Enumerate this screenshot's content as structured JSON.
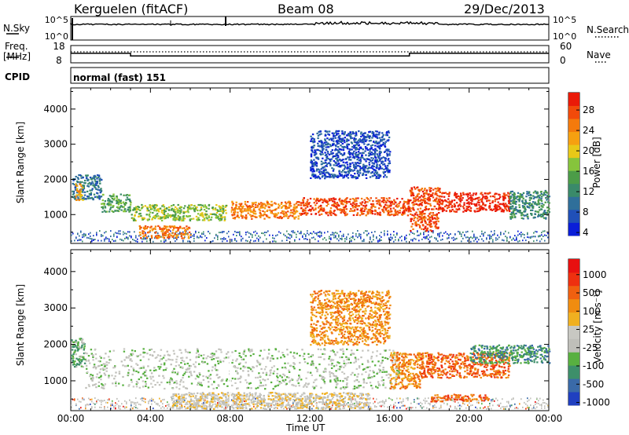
{
  "header": {
    "site": "Kerguelen (fitACF)",
    "beam": "Beam 08",
    "date": "29/Dec/2013"
  },
  "labels": {
    "nsky": "N.Sky",
    "nsearch": "N.Search",
    "freq": "Freq.",
    "freq_unit": "[MHz]",
    "nave": "Nave",
    "cpid": "CPID",
    "cpid_value": "normal (fast) 151"
  },
  "colors": {
    "power": [
      "#0a1ed8",
      "#2050b8",
      "#2f6f9a",
      "#3a8a6a",
      "#4c9c48",
      "#86c43c",
      "#e8c818",
      "#f6a010",
      "#f47a0c",
      "#f24a0a",
      "#ea1a08"
    ],
    "velocity": [
      "#2040c0",
      "#3a6aa8",
      "#3d8f6a",
      "#58b040",
      "#bfbfb9",
      "#c8c8c2",
      "#f0b020",
      "#f08c10",
      "#f06010",
      "#ee3010",
      "#e81010"
    ],
    "gray_scatter": "#bfbfb9"
  },
  "chart_data": [
    {
      "type": "line",
      "name": "sky-search-noise",
      "ylabel": "N.Sky",
      "y_ticks": [
        "10^5",
        "10^0"
      ],
      "y2_ticks": [
        "10^5",
        "10^0"
      ],
      "y2_label": "N.Search"
    },
    {
      "type": "line",
      "name": "frequency-nave",
      "ylabel": "Freq. [MHz]",
      "y_ticks": [
        "18",
        "8"
      ],
      "y2_ticks": [
        "60",
        "0"
      ],
      "y2_label": "Nave",
      "xlim": [
        0,
        24
      ],
      "ylim": [
        8,
        18
      ],
      "series": [
        {
          "x": [
            0,
            3,
            3,
            17,
            17,
            24
          ],
          "values": [
            13.5,
            13.5,
            12,
            12,
            13.5,
            13.5
          ]
        }
      ]
    },
    {
      "type": "heatmap",
      "name": "power",
      "ylabel": "Slant Range [km]",
      "y_ticks": [
        "4000",
        "3000",
        "2000",
        "1000"
      ],
      "ylim": [
        180,
        4600
      ],
      "xlim": [
        0,
        24
      ],
      "colorbar": {
        "label": "Power [dB]",
        "ticks": [
          "28",
          "24",
          "20",
          "16",
          "12",
          "8",
          "4"
        ]
      },
      "regions": [
        {
          "t0": 0.0,
          "t1": 1.5,
          "r0": 1450,
          "r1": 2150,
          "c": 2
        },
        {
          "t0": 0.2,
          "t1": 0.6,
          "r0": 1400,
          "r1": 1900,
          "c": 7
        },
        {
          "t0": 1.5,
          "t1": 3.0,
          "r0": 1100,
          "r1": 1600,
          "c": 4
        },
        {
          "t0": 3.0,
          "t1": 7.8,
          "r0": 850,
          "r1": 1300,
          "c": 5
        },
        {
          "t0": 3.4,
          "t1": 6.0,
          "r0": 350,
          "r1": 700,
          "c": 8
        },
        {
          "t0": 8.0,
          "t1": 11.5,
          "r0": 900,
          "r1": 1400,
          "c": 8
        },
        {
          "t0": 11.5,
          "t1": 17.0,
          "r0": 1000,
          "r1": 1500,
          "c": 9
        },
        {
          "t0": 12.0,
          "t1": 16.0,
          "r0": 2050,
          "r1": 3400,
          "c": 1
        },
        {
          "t0": 17.0,
          "t1": 18.5,
          "r0": 550,
          "r1": 1800,
          "c": 9
        },
        {
          "t0": 18.5,
          "t1": 22.0,
          "r0": 1100,
          "r1": 1650,
          "c": 10
        },
        {
          "t0": 22.0,
          "t1": 24.0,
          "r0": 900,
          "r1": 1700,
          "c": 3
        }
      ]
    },
    {
      "type": "heatmap",
      "name": "velocity",
      "ylabel": "Slant Range [km]",
      "y_ticks": [
        "4000",
        "3000",
        "2000",
        "1000"
      ],
      "ylim": [
        180,
        4600
      ],
      "xlim": [
        0,
        24
      ],
      "x_ticks": [
        "00:00",
        "04:00",
        "08:00",
        "12:00",
        "16:00",
        "20:00",
        "00:00"
      ],
      "xlabel": "Time UT",
      "colorbar": {
        "label": "Velocity [m s⁻¹]",
        "ticks": [
          "1000",
          "500",
          "100",
          "25",
          "-25",
          "-100",
          "-500",
          "-1000"
        ]
      },
      "regions": [
        {
          "t0": 0.0,
          "t1": 0.7,
          "r0": 1400,
          "r1": 2200,
          "c": 3
        },
        {
          "t0": 0.7,
          "t1": 16.5,
          "r0": 800,
          "r1": 1900,
          "c": 4
        },
        {
          "t0": 12.0,
          "t1": 16.0,
          "r0": 2000,
          "r1": 3500,
          "c": 7
        },
        {
          "t0": 16.0,
          "t1": 17.5,
          "r0": 800,
          "r1": 1800,
          "c": 7
        },
        {
          "t0": 17.5,
          "t1": 22.0,
          "r0": 1100,
          "r1": 1800,
          "c": 8
        },
        {
          "t0": 18.0,
          "t1": 21.0,
          "r0": 450,
          "r1": 650,
          "c": 8
        },
        {
          "t0": 20.0,
          "t1": 24.0,
          "r0": 1500,
          "r1": 2000,
          "c": 2
        },
        {
          "t0": 5.0,
          "t1": 15.0,
          "r0": 250,
          "r1": 700,
          "c": 5
        }
      ]
    }
  ]
}
